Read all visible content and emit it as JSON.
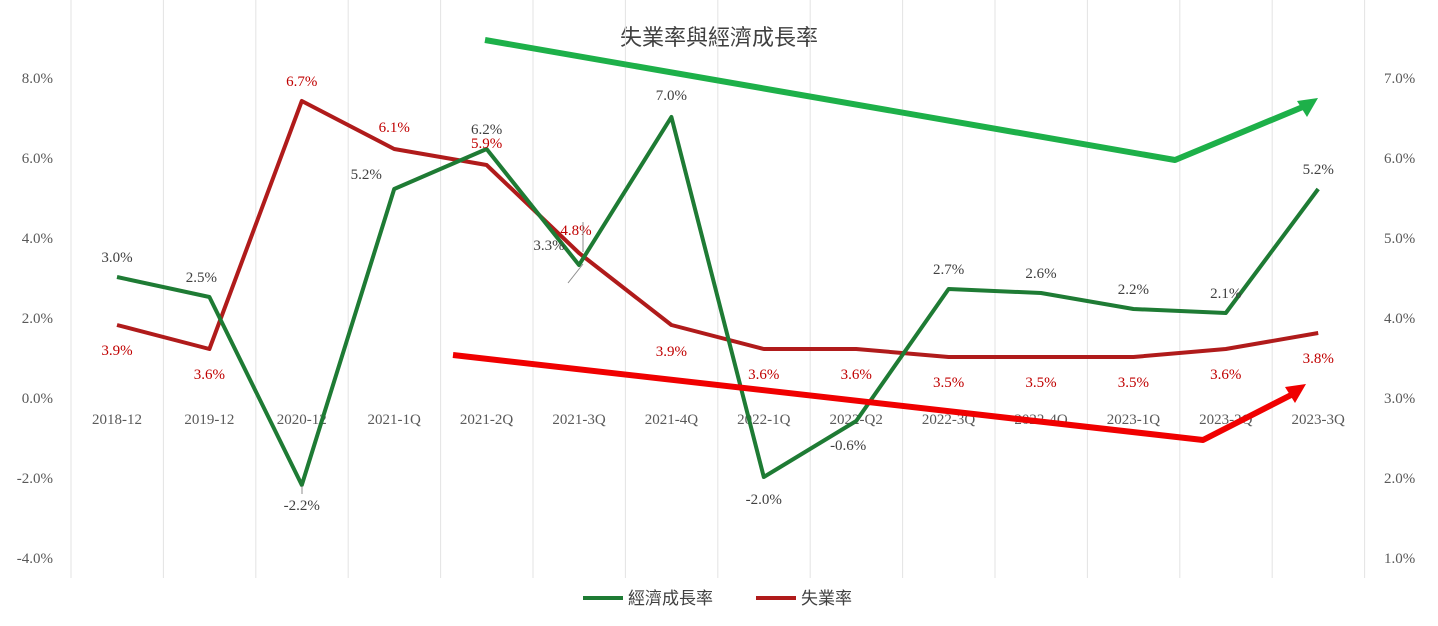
{
  "chart_data": {
    "type": "line",
    "title": "失業率與經濟成長率",
    "categories": [
      "2018-12",
      "2019-12",
      "2020-12",
      "2021-1Q",
      "2021-2Q",
      "2021-3Q",
      "2021-4Q",
      "2022-1Q",
      "2022-Q2",
      "2022-3Q",
      "2022-4Q",
      "2023-1Q",
      "2023-2Q",
      "2023-3Q"
    ],
    "y_left": {
      "ticks": [
        "8.0%",
        "6.0%",
        "4.0%",
        "2.0%",
        "0.0%",
        "-2.0%",
        "-4.0%"
      ],
      "range": [
        -4,
        8
      ]
    },
    "y_right": {
      "ticks": [
        "7.0%",
        "6.0%",
        "5.0%",
        "4.0%",
        "3.0%",
        "2.0%",
        "1.0%"
      ],
      "range": [
        1,
        7
      ]
    },
    "series": [
      {
        "name": "經濟成長率",
        "axis": "left",
        "color": "#1e7b34",
        "values": [
          3.0,
          2.5,
          -2.2,
          5.2,
          6.2,
          3.3,
          7.0,
          -2.0,
          -0.6,
          2.7,
          2.6,
          2.2,
          2.1,
          5.2
        ],
        "labels": [
          "3.0%",
          "2.5%",
          "-2.2%",
          "5.2%",
          "6.2%",
          "3.3%",
          "7.0%",
          "-2.0%",
          "-0.6%",
          "2.7%",
          "2.6%",
          "2.2%",
          "2.1%",
          "5.2%"
        ]
      },
      {
        "name": "失業率",
        "axis": "right",
        "color": "#b01b1b",
        "values": [
          3.9,
          3.6,
          6.7,
          6.1,
          5.9,
          4.8,
          3.9,
          3.6,
          3.6,
          3.5,
          3.5,
          3.5,
          3.6,
          3.8
        ],
        "labels": [
          "3.9%",
          "3.6%",
          "6.7%",
          "6.1%",
          "5.9%",
          "4.8%",
          "3.9%",
          "3.6%",
          "3.6%",
          "3.5%",
          "3.5%",
          "3.5%",
          "3.6%",
          "3.8%"
        ]
      }
    ],
    "legend_position": "bottom",
    "grid": "vertical",
    "annotations": [
      {
        "kind": "trend-arrow",
        "color": "#1db049",
        "direction": "down-then-up"
      },
      {
        "kind": "trend-arrow",
        "color": "#f00000",
        "direction": "down-then-up"
      }
    ]
  }
}
